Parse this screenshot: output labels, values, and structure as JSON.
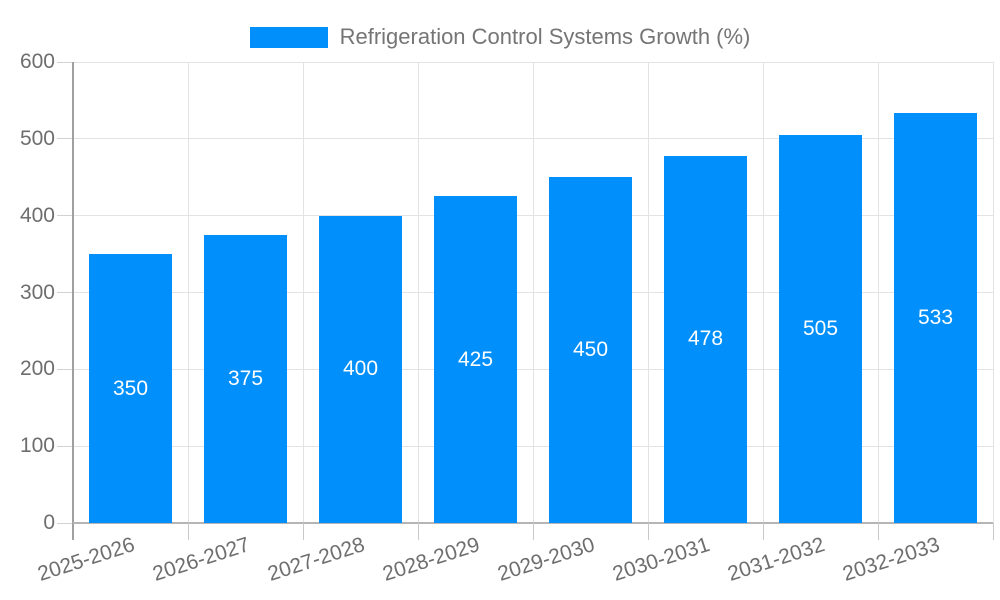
{
  "legend": {
    "items": [
      {
        "label": "Refrigeration Control Systems Growth (%)",
        "color": "#008FFB"
      }
    ]
  },
  "chart_data": {
    "type": "bar",
    "title": "",
    "xlabel": "",
    "ylabel": "",
    "categories": [
      "2025-2026",
      "2026-2027",
      "2027-2028",
      "2028-2029",
      "2029-2030",
      "2030-2031",
      "2031-2032",
      "2032-2033"
    ],
    "series": [
      {
        "name": "Refrigeration Control Systems Growth (%)",
        "values": [
          350,
          375,
          400,
          425,
          450,
          478,
          505,
          533
        ]
      }
    ],
    "bar_labels": [
      "350",
      "375",
      "400",
      "425",
      "450",
      "478",
      "505",
      "533"
    ],
    "ylim": [
      0,
      600
    ],
    "yticks": [
      0,
      100,
      200,
      300,
      400,
      500,
      600
    ],
    "grid": true,
    "legend_position": "top",
    "x_label_rotation_deg": -18
  },
  "colors": {
    "bar": "#008FFB",
    "bar_label": "#ffffff",
    "axis_text": "#6e6e6e",
    "legend_text": "#757575",
    "grid": "#e3e3e3",
    "axis_line": "#a0a0a0",
    "baseline": "#b5b5b5",
    "tick": "#c9c9c9"
  }
}
